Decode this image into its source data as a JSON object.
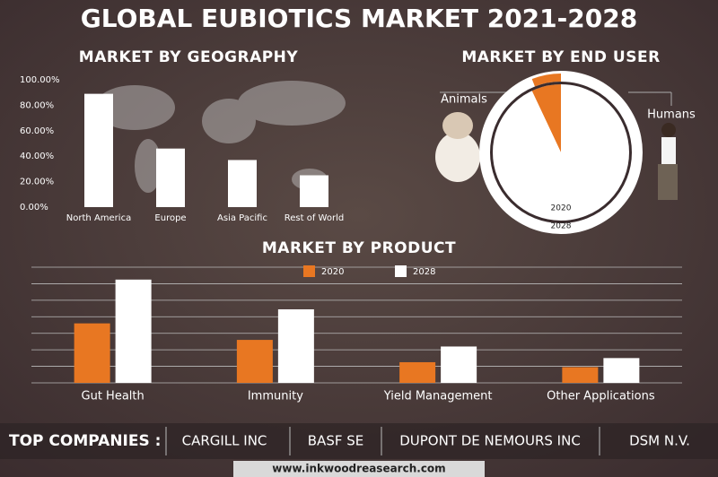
{
  "title": "GLOBAL EUBIOTICS MARKET 2021-2028",
  "chart_data": [
    {
      "type": "bar",
      "title": "MARKET BY GEOGRAPHY",
      "categories": [
        "North America",
        "Europe",
        "Asia Pacific",
        "Rest of World"
      ],
      "values": [
        89,
        46,
        37,
        25
      ],
      "color": "#ffffff",
      "ylim": [
        0,
        100
      ],
      "yticks": [
        {
          "value": 0,
          "label": "0.00%"
        },
        {
          "value": 20,
          "label": "20.00%"
        },
        {
          "value": 40,
          "label": "40.00%"
        },
        {
          "value": 60,
          "label": "60.00%"
        },
        {
          "value": 80,
          "label": "80.00%"
        },
        {
          "value": 100,
          "label": "100.00%"
        }
      ]
    },
    {
      "type": "pie",
      "title": "MARKET BY END USER",
      "categories": [
        "Animals",
        "Humans"
      ],
      "colors": [
        "#e87722",
        "#ffffff"
      ],
      "series": [
        {
          "name": "2020",
          "values": [
            7,
            93
          ]
        },
        {
          "name": "2028",
          "values": [
            6,
            94
          ]
        }
      ]
    },
    {
      "type": "grouped-bar",
      "title": "MARKET BY PRODUCT",
      "categories": [
        "Gut Health",
        "Immunity",
        "Yield Management",
        "Other Applications"
      ],
      "series": [
        {
          "name": "2020",
          "color": "#e87722",
          "values": [
            72,
            52,
            25,
            19
          ]
        },
        {
          "name": "2028",
          "color": "#ffffff",
          "values": [
            125,
            89,
            44,
            30
          ]
        }
      ],
      "ylim": [
        0,
        140
      ],
      "yticks": [
        0,
        20,
        40,
        60,
        80,
        100,
        120,
        140
      ],
      "grid": true,
      "show_tick_labels": false
    }
  ],
  "companies": {
    "label": "TOP COMPANIES :",
    "names": [
      "CARGILL INC",
      "BASF SE",
      "DUPONT DE NEMOURS INC",
      "DSM N.V."
    ]
  },
  "footer": "www.inkwoodreasearch.com"
}
